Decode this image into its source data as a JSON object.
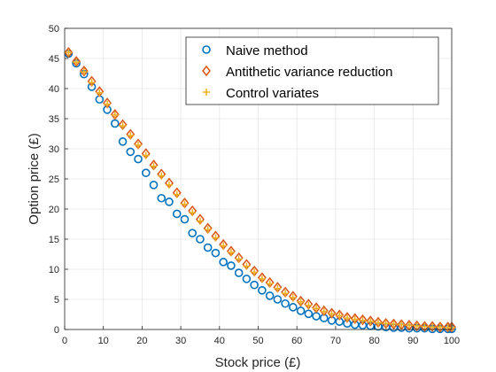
{
  "chart_data": {
    "type": "scatter",
    "xlabel": "Stock price (£)",
    "ylabel": "Option price (£)",
    "xlim": [
      0,
      100
    ],
    "ylim": [
      0,
      50
    ],
    "xticks": [
      "0",
      "10",
      "20",
      "30",
      "40",
      "50",
      "60",
      "70",
      "80",
      "90",
      "100"
    ],
    "yticks": [
      "0",
      "5",
      "10",
      "15",
      "20",
      "25",
      "30",
      "35",
      "40",
      "45",
      "50"
    ],
    "grid": true,
    "legend_position": "top-right",
    "x": [
      1,
      3,
      5,
      7,
      9,
      11,
      13,
      15,
      17,
      19,
      21,
      23,
      25,
      27,
      29,
      31,
      33,
      35,
      37,
      39,
      41,
      43,
      45,
      47,
      49,
      51,
      53,
      55,
      57,
      59,
      61,
      63,
      65,
      67,
      69,
      71,
      73,
      75,
      77,
      79,
      81,
      83,
      85,
      87,
      89,
      91,
      93,
      95,
      97,
      99,
      100
    ],
    "series": [
      {
        "name": "Naive method",
        "marker": "circle",
        "color": "#0072BD",
        "values": [
          45.8,
          44.2,
          42.4,
          40.3,
          38.2,
          36.5,
          34.2,
          31.2,
          29.5,
          28.3,
          26.0,
          24.0,
          21.8,
          21.2,
          19.2,
          18.3,
          16.0,
          15.0,
          13.6,
          12.7,
          11.2,
          10.6,
          9.4,
          8.4,
          7.4,
          6.5,
          5.6,
          5.0,
          4.3,
          3.7,
          3.1,
          2.6,
          2.2,
          1.9,
          1.5,
          1.3,
          1.0,
          0.8,
          0.7,
          0.6,
          0.5,
          0.4,
          0.3,
          0.3,
          0.2,
          0.2,
          0.2,
          0.1,
          0.1,
          0.1,
          0.1
        ]
      },
      {
        "name": "Antithetic variance reduction",
        "marker": "diamond",
        "color": "#D95319",
        "values": [
          46.0,
          44.5,
          42.9,
          41.2,
          39.5,
          37.6,
          35.7,
          34.0,
          32.4,
          30.8,
          29.2,
          27.3,
          25.8,
          24.3,
          22.7,
          21.0,
          19.7,
          18.3,
          16.8,
          15.5,
          14.1,
          13.0,
          11.9,
          10.8,
          9.7,
          8.6,
          7.8,
          7.0,
          6.2,
          5.5,
          4.7,
          4.2,
          3.6,
          3.1,
          2.7,
          2.4,
          2.0,
          1.8,
          1.6,
          1.4,
          1.2,
          1.0,
          0.9,
          0.8,
          0.7,
          0.6,
          0.5,
          0.5,
          0.4,
          0.4,
          0.4
        ]
      },
      {
        "name": "Control variates",
        "marker": "plus",
        "color": "#EDB120",
        "values": [
          46.0,
          44.4,
          42.8,
          41.0,
          39.3,
          37.4,
          35.6,
          33.8,
          32.2,
          30.6,
          28.9,
          27.1,
          25.5,
          24.0,
          22.4,
          20.8,
          19.4,
          18.0,
          16.6,
          15.2,
          13.9,
          12.8,
          11.7,
          10.5,
          9.5,
          8.4,
          7.6,
          6.8,
          6.0,
          5.3,
          4.6,
          4.0,
          3.5,
          3.0,
          2.6,
          2.3,
          1.9,
          1.7,
          1.5,
          1.3,
          1.1,
          1.0,
          0.9,
          0.8,
          0.7,
          0.6,
          0.5,
          0.4,
          0.4,
          0.3,
          0.3
        ]
      }
    ]
  }
}
